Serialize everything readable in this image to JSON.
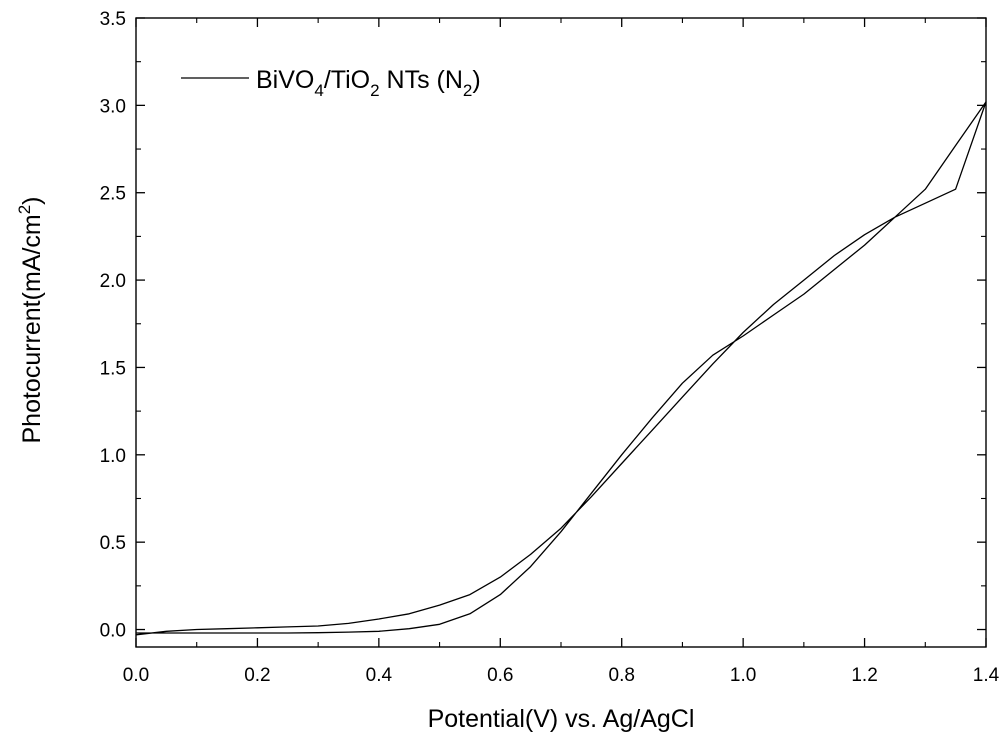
{
  "chart_data": {
    "type": "line",
    "xlabel": "Potential(V) vs. Ag/AgCl",
    "ylabel": {
      "main": "Photocurrent(mA/cm",
      "sup": "2",
      "close": ")"
    },
    "xlim": [
      0.0,
      1.4
    ],
    "ylim": [
      -0.1,
      3.5
    ],
    "x_ticks": [
      "0.0",
      "0.2",
      "0.4",
      "0.6",
      "0.8",
      "1.0",
      "1.2",
      "1.4"
    ],
    "y_ticks": [
      "0.0",
      "0.5",
      "1.0",
      "1.5",
      "2.0",
      "2.5",
      "3.0",
      "3.5"
    ],
    "grid": false,
    "legend_position": "top-left",
    "legend": {
      "parts": [
        {
          "t": "BiVO",
          "s": "n"
        },
        {
          "t": "4",
          "s": "sub"
        },
        {
          "t": "/TiO",
          "s": "n"
        },
        {
          "t": "2",
          "s": "sub"
        },
        {
          "t": " NTs (N",
          "s": "n"
        },
        {
          "t": "2",
          "s": "sub"
        },
        {
          "t": ")",
          "s": "n"
        }
      ]
    },
    "series": [
      {
        "name": "BiVO4/TiO2 NTs (N2)",
        "color": "#000000",
        "x": [
          0.0,
          0.05,
          0.1,
          0.15,
          0.2,
          0.25,
          0.3,
          0.35,
          0.4,
          0.45,
          0.5,
          0.55,
          0.6,
          0.65,
          0.7,
          0.75,
          0.8,
          0.85,
          0.9,
          0.95,
          1.0,
          1.05,
          1.1,
          1.15,
          1.2,
          1.25,
          1.3,
          1.35,
          1.4,
          1.35,
          1.3,
          1.25,
          1.2,
          1.15,
          1.1,
          1.05,
          1.0,
          0.95,
          0.9,
          0.85,
          0.8,
          0.75,
          0.7,
          0.65,
          0.6,
          0.55,
          0.5,
          0.45,
          0.4,
          0.35,
          0.3,
          0.25,
          0.2,
          0.15,
          0.1,
          0.05,
          0.0
        ],
        "y": [
          -0.02,
          -0.02,
          -0.02,
          -0.02,
          -0.02,
          -0.02,
          -0.018,
          -0.015,
          -0.01,
          0.005,
          0.03,
          0.09,
          0.2,
          0.36,
          0.56,
          0.78,
          1.0,
          1.21,
          1.41,
          1.57,
          1.68,
          1.8,
          1.92,
          2.06,
          2.2,
          2.36,
          2.52,
          2.77,
          3.02,
          2.52,
          2.44,
          2.36,
          2.26,
          2.14,
          2.0,
          1.86,
          1.7,
          1.52,
          1.33,
          1.14,
          0.95,
          0.76,
          0.58,
          0.43,
          0.3,
          0.2,
          0.14,
          0.09,
          0.06,
          0.035,
          0.02,
          0.015,
          0.01,
          0.005,
          0.0,
          -0.01,
          -0.03
        ]
      }
    ]
  }
}
